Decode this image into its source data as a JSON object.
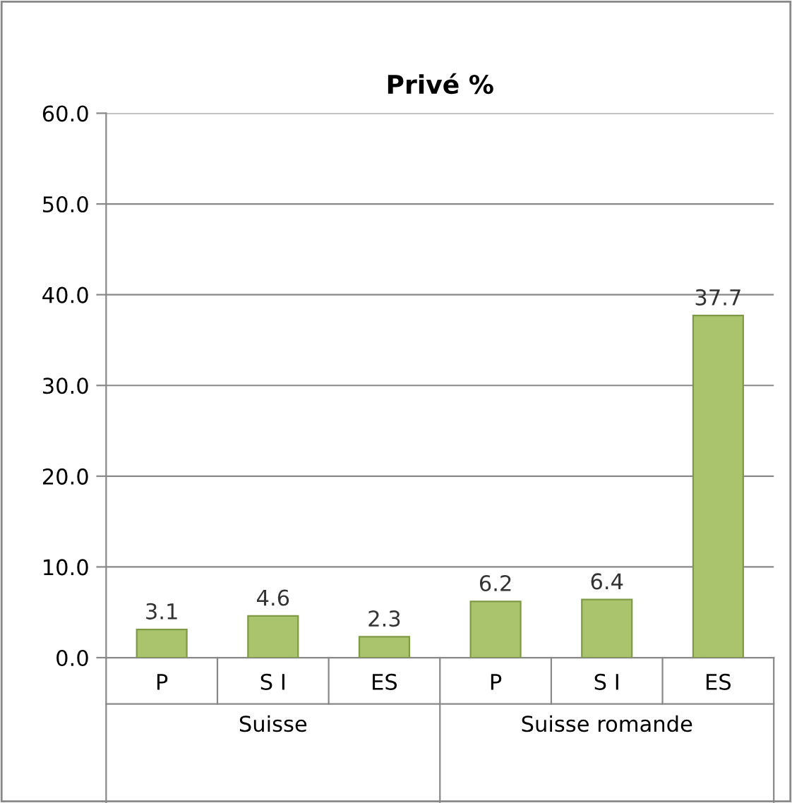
{
  "chart_data": {
    "type": "bar",
    "title": "Privé %",
    "categories": [
      "P",
      "S I",
      "ES",
      "P",
      "S I",
      "ES"
    ],
    "values": [
      3.1,
      4.6,
      2.3,
      6.2,
      6.4,
      37.7
    ],
    "color": "#a9c46c",
    "data_labels": true,
    "ylim": [
      0,
      60
    ],
    "yticks": [
      {
        "value": 0,
        "label": "0.0"
      },
      {
        "value": 10,
        "label": "10.0"
      },
      {
        "value": 20,
        "label": "20.0"
      },
      {
        "value": 30,
        "label": "30.0"
      },
      {
        "value": 40,
        "label": "40.0"
      },
      {
        "value": 50,
        "label": "50.0"
      },
      {
        "value": 60,
        "label": "60.0"
      }
    ],
    "grid": "y",
    "annotations": [
      "Suisse",
      "Suisse romande"
    ]
  }
}
